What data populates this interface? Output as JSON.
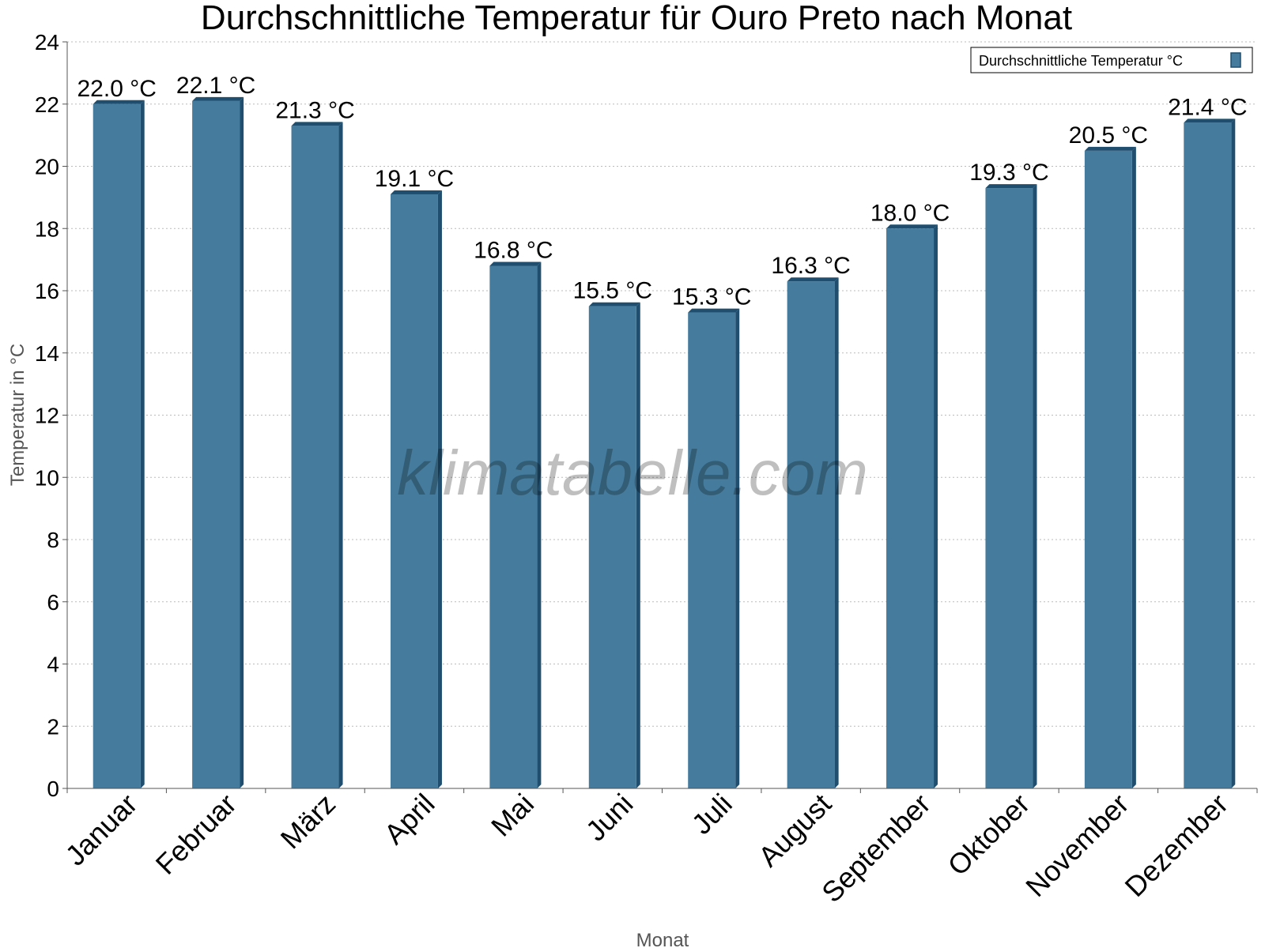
{
  "chart_data": {
    "type": "bar",
    "title": "Durchschnittliche Temperatur für Ouro Preto nach Monat",
    "xlabel": "Monat",
    "ylabel": "Temperatur in °C",
    "ylim": [
      0,
      24
    ],
    "yticks": [
      0,
      2,
      4,
      6,
      8,
      10,
      12,
      14,
      16,
      18,
      20,
      22,
      24
    ],
    "grid": true,
    "legend_position": "top-right",
    "watermark": "klimatabelle.com",
    "categories": [
      "Januar",
      "Februar",
      "März",
      "April",
      "Mai",
      "Juni",
      "Juli",
      "August",
      "September",
      "Oktober",
      "November",
      "Dezember"
    ],
    "series": [
      {
        "name": "Durchschnittliche Temperatur °C",
        "color": "#457b9d",
        "values": [
          22.0,
          22.1,
          21.3,
          19.1,
          16.8,
          15.5,
          15.3,
          16.3,
          18.0,
          19.3,
          20.5,
          21.4
        ],
        "labels": [
          "22.0 °C",
          "22.1 °C",
          "21.3 °C",
          "19.1 °C",
          "16.8 °C",
          "15.5 °C",
          "15.3 °C",
          "16.3 °C",
          "18.0 °C",
          "19.3 °C",
          "20.5 °C",
          "21.4 °C"
        ]
      }
    ]
  }
}
